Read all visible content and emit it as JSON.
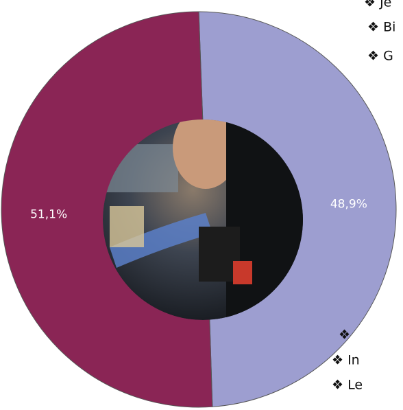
{
  "chart_data": {
    "type": "pie",
    "donut": true,
    "values": [
      48.9,
      51.1
    ],
    "value_labels": [
      "48,9%",
      "51,1%"
    ],
    "colors": [
      "#9d9ed0",
      "#8a2555"
    ]
  },
  "side_notes": [
    "❖ Je",
    "❖ Bi",
    "❖ G",
    "❖",
    "❖ In",
    "❖ Le"
  ]
}
